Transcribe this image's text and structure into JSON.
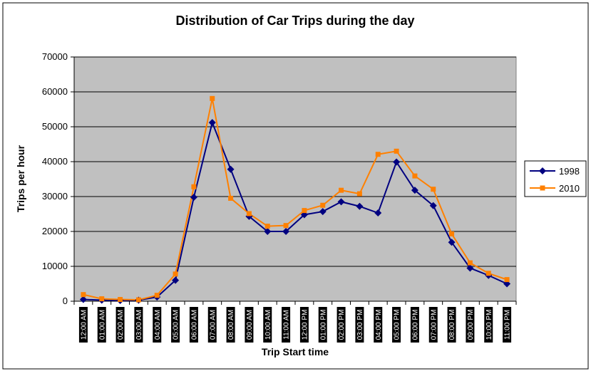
{
  "chart_data": {
    "type": "line",
    "title": "Distribution of Car Trips during the day",
    "xlabel": "Trip Start time",
    "ylabel": "Trips per hour",
    "ylim": [
      0,
      70000
    ],
    "yticks": [
      0,
      10000,
      20000,
      30000,
      40000,
      50000,
      60000,
      70000
    ],
    "ytick_labels": [
      "0",
      "10000",
      "20000",
      "30000",
      "40000",
      "50000",
      "60000",
      "70000"
    ],
    "grid": "horizontal",
    "legend_position": "right",
    "plot_background": "#c0c0c0",
    "categories": [
      "12:00 AM",
      "01:00 AM",
      "02:00 AM",
      "03:00 AM",
      "04:00 AM",
      "05:00 AM",
      "06:00 AM",
      "07:00 AM",
      "08:00 AM",
      "09:00 AM",
      "10:00 AM",
      "11:00 AM",
      "12:00 PM",
      "01:00 PM",
      "02:00 PM",
      "03:00 PM",
      "04:00 PM",
      "05:00 PM",
      "06:00 PM",
      "07:00 PM",
      "08:00 PM",
      "09:00 PM",
      "10:00 PM",
      "11:00 PM"
    ],
    "series": [
      {
        "name": "1998",
        "color": "#000080",
        "marker": "diamond",
        "values": [
          500,
          300,
          200,
          300,
          1200,
          6000,
          29800,
          51200,
          37800,
          24300,
          20000,
          20000,
          24800,
          25700,
          28500,
          27200,
          25300,
          39900,
          31800,
          27400,
          16900,
          9500,
          7400,
          5000
        ]
      },
      {
        "name": "2010",
        "color": "#ff8000",
        "marker": "square",
        "values": [
          1900,
          700,
          500,
          400,
          1700,
          7800,
          32800,
          58100,
          29500,
          25100,
          21500,
          21700,
          26000,
          27500,
          31800,
          30800,
          42100,
          43000,
          35900,
          32100,
          19300,
          11000,
          8000,
          6200
        ]
      }
    ]
  }
}
